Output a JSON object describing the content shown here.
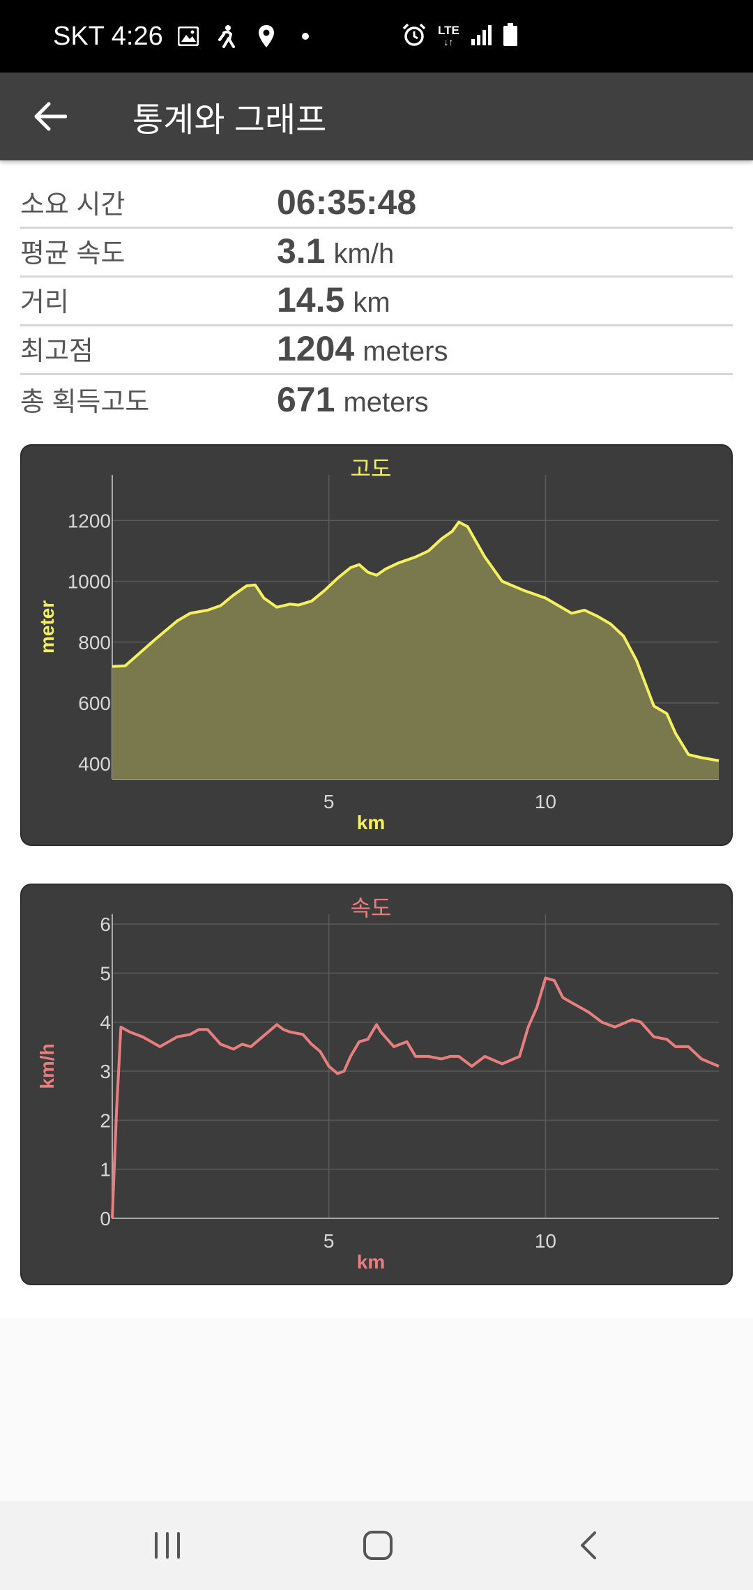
{
  "status_bar": {
    "carrier_time": "SKT 4:26",
    "network": "LTE"
  },
  "app_bar": {
    "title": "통계와 그래프"
  },
  "stats": [
    {
      "label": "소요 시간",
      "value": "06:35:48",
      "unit": ""
    },
    {
      "label": "평균 속도",
      "value": "3.1",
      "unit": "km/h"
    },
    {
      "label": "거리",
      "value": "14.5",
      "unit": "km"
    },
    {
      "label": "최고점",
      "value": "1204",
      "unit": "meters"
    },
    {
      "label": "총 획득고도",
      "value": "671",
      "unit": "meters"
    }
  ],
  "chart_data": [
    {
      "type": "area",
      "title": "고도",
      "xlabel": "km",
      "ylabel": "meter",
      "xlim": [
        0,
        14
      ],
      "ylim": [
        350,
        1350
      ],
      "xticks": [
        5,
        10
      ],
      "yticks": [
        400,
        600,
        800,
        1000,
        1200
      ],
      "grid": true,
      "color": "#f5f060",
      "fill": "#7a784d",
      "x": [
        0,
        0.3,
        0.6,
        1.0,
        1.5,
        1.8,
        2.2,
        2.5,
        2.8,
        3.1,
        3.3,
        3.5,
        3.8,
        4.1,
        4.3,
        4.6,
        4.9,
        5.2,
        5.5,
        5.7,
        5.9,
        6.1,
        6.3,
        6.6,
        7.0,
        7.3,
        7.6,
        7.85,
        8.0,
        8.2,
        8.6,
        9.0,
        9.5,
        10.0,
        10.3,
        10.6,
        10.9,
        11.2,
        11.5,
        11.8,
        12.1,
        12.3,
        12.5,
        12.8,
        13.0,
        13.3,
        13.6,
        14.0
      ],
      "y": [
        720,
        722,
        760,
        810,
        870,
        895,
        905,
        920,
        955,
        985,
        988,
        945,
        915,
        925,
        922,
        935,
        970,
        1010,
        1045,
        1055,
        1030,
        1020,
        1040,
        1060,
        1080,
        1100,
        1140,
        1165,
        1195,
        1180,
        1080,
        1000,
        970,
        945,
        920,
        895,
        905,
        885,
        860,
        820,
        740,
        665,
        590,
        565,
        500,
        430,
        420,
        410
      ]
    },
    {
      "type": "line",
      "title": "속도",
      "xlabel": "km",
      "ylabel": "km/h",
      "xlim": [
        0,
        14
      ],
      "ylim": [
        0,
        6.2
      ],
      "xticks": [
        5,
        10
      ],
      "yticks": [
        0,
        1,
        2,
        3,
        4,
        5,
        6
      ],
      "grid": true,
      "color": "#e87f7f",
      "x": [
        0,
        0.1,
        0.2,
        0.4,
        0.7,
        0.9,
        1.1,
        1.3,
        1.5,
        1.8,
        2.0,
        2.2,
        2.5,
        2.8,
        3.0,
        3.2,
        3.4,
        3.6,
        3.8,
        3.95,
        4.1,
        4.4,
        4.6,
        4.8,
        5.0,
        5.2,
        5.35,
        5.5,
        5.7,
        5.9,
        6.1,
        6.2,
        6.5,
        6.8,
        7.0,
        7.3,
        7.6,
        7.8,
        8.0,
        8.3,
        8.6,
        9.0,
        9.4,
        9.6,
        9.8,
        10.0,
        10.2,
        10.4,
        10.6,
        11.0,
        11.3,
        11.6,
        12.0,
        12.2,
        12.5,
        12.8,
        13.0,
        13.3,
        13.6,
        14.0
      ],
      "y": [
        0,
        2.2,
        3.9,
        3.8,
        3.7,
        3.6,
        3.5,
        3.6,
        3.7,
        3.75,
        3.85,
        3.85,
        3.55,
        3.45,
        3.55,
        3.5,
        3.65,
        3.8,
        3.95,
        3.85,
        3.8,
        3.75,
        3.55,
        3.4,
        3.1,
        2.95,
        3.0,
        3.3,
        3.6,
        3.65,
        3.95,
        3.8,
        3.5,
        3.6,
        3.3,
        3.3,
        3.25,
        3.3,
        3.3,
        3.1,
        3.3,
        3.15,
        3.3,
        3.9,
        4.3,
        4.9,
        4.85,
        4.5,
        4.4,
        4.2,
        4.0,
        3.9,
        4.05,
        4.0,
        3.7,
        3.65,
        3.5,
        3.5,
        3.25,
        3.1
      ]
    }
  ]
}
